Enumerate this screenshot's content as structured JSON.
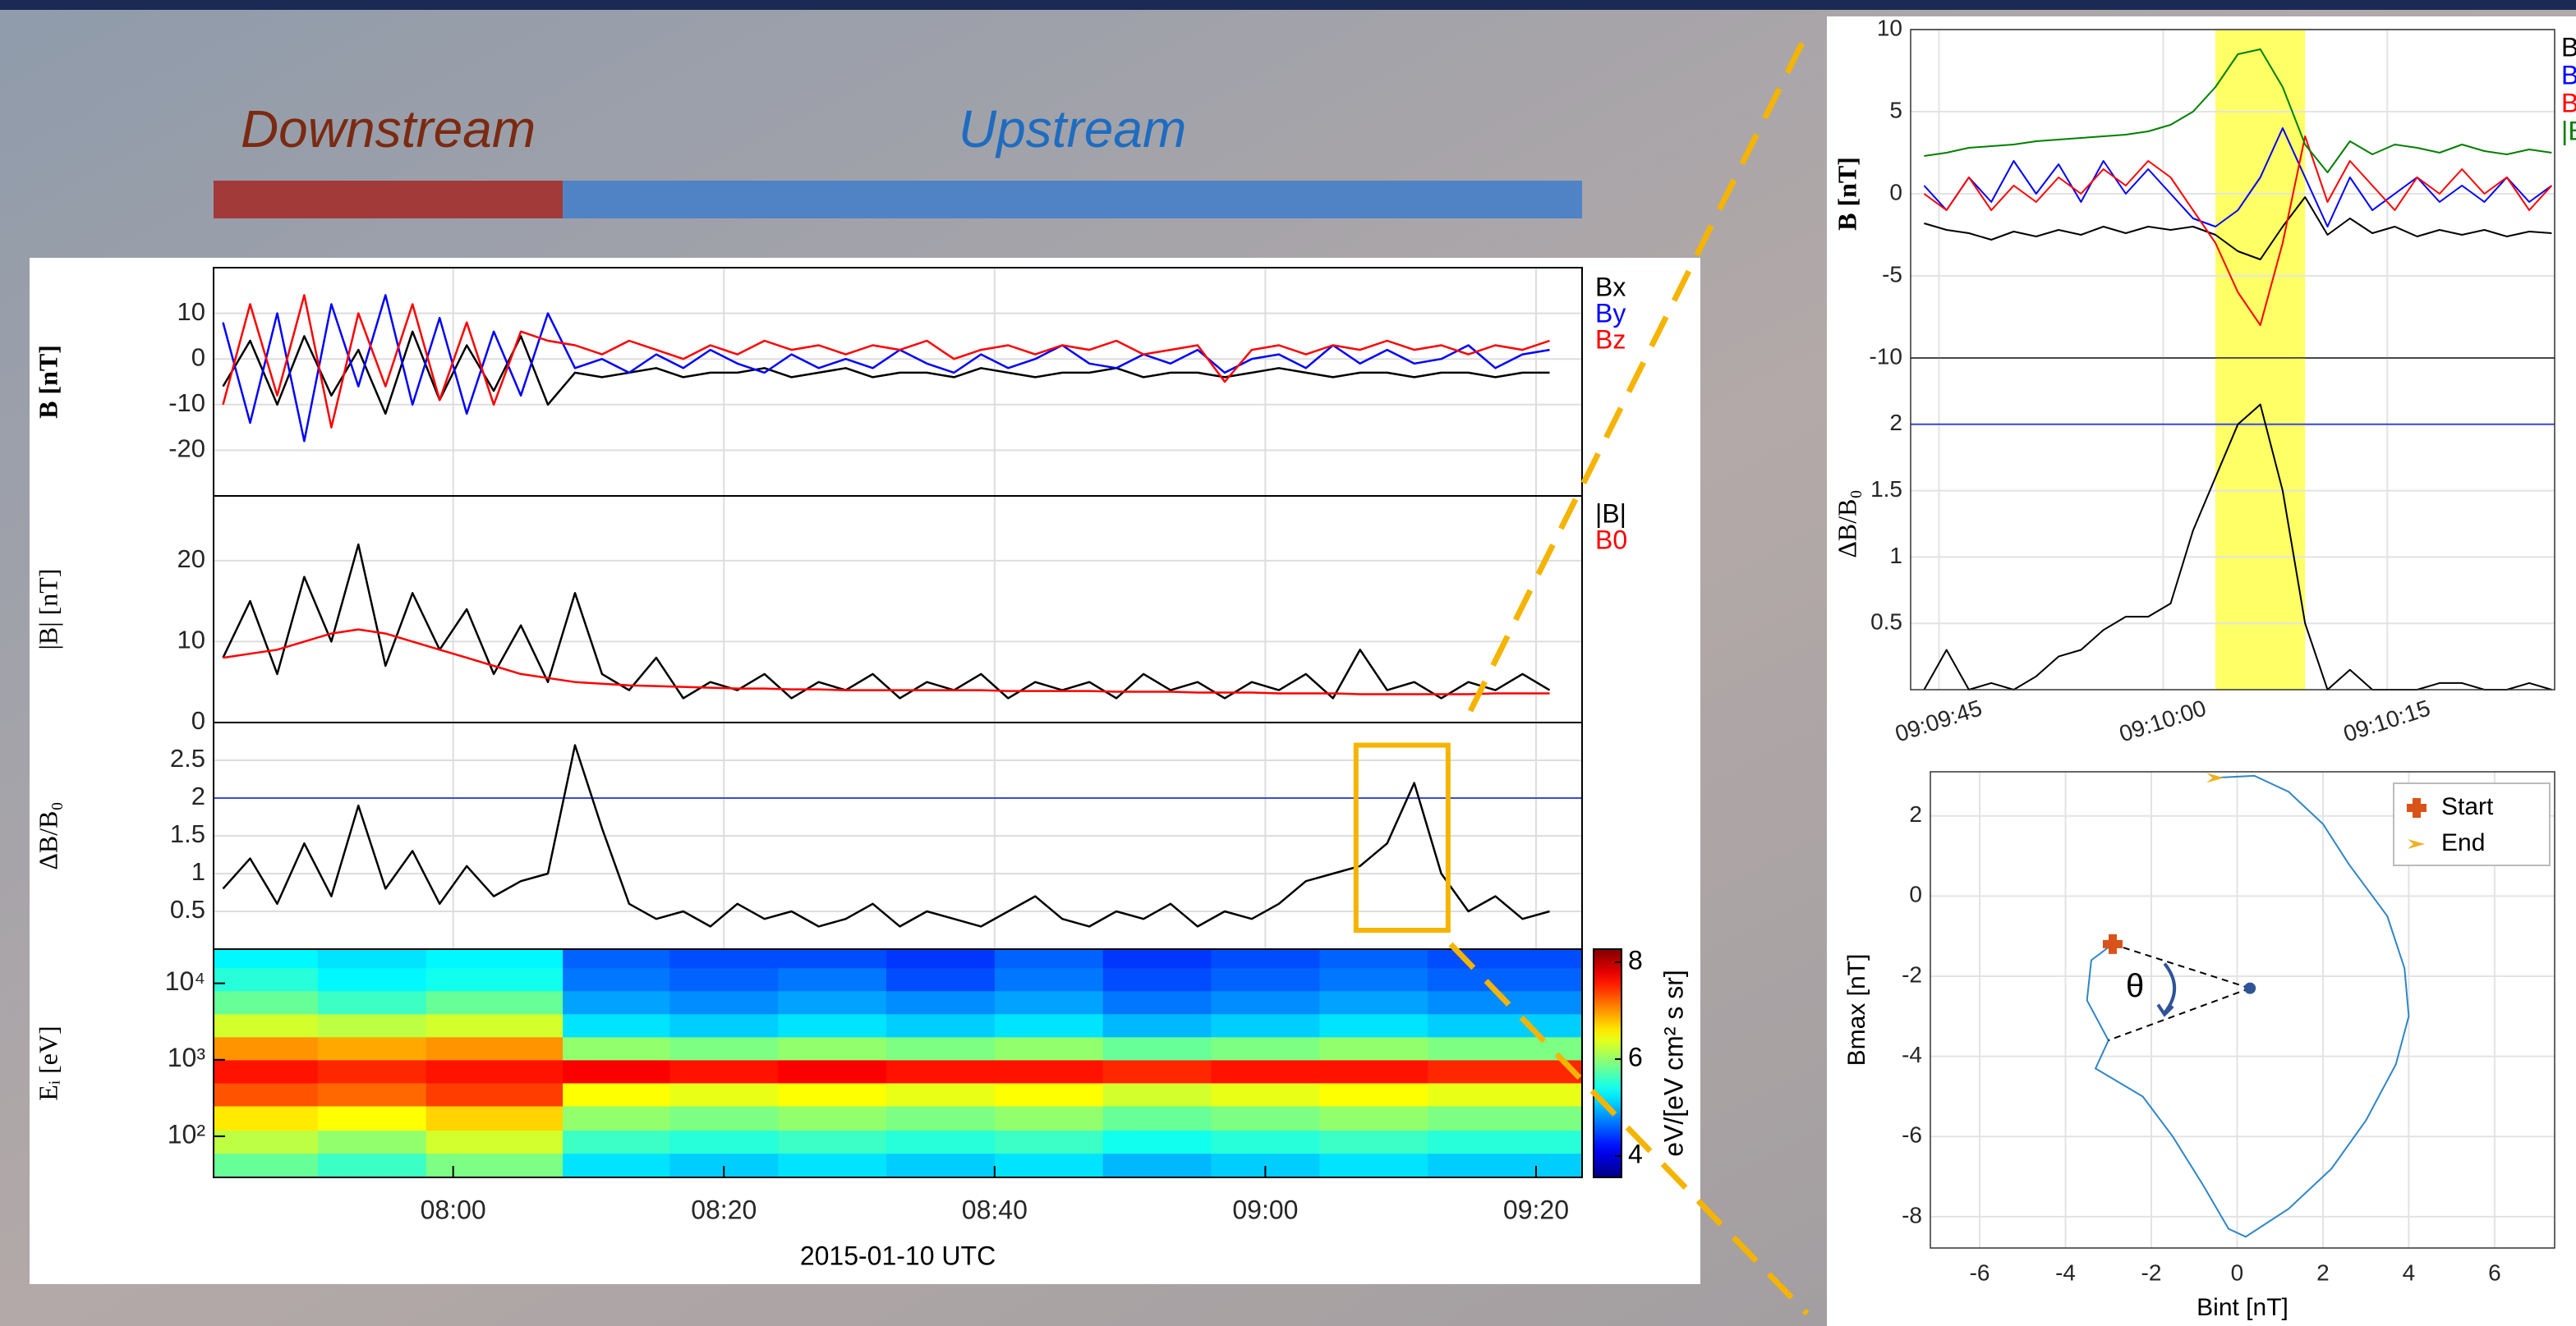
{
  "chart_data": [
    {
      "type": "line",
      "ylabel": "B [nT]",
      "xlim": [
        462.3,
        563.4
      ],
      "ylim": [
        -30,
        20
      ],
      "yticks": [
        -20,
        -10,
        0,
        10
      ],
      "grid": true,
      "regions": [
        {
          "label": "Downstream",
          "color": "#a33a3a",
          "label_color": "#7b2a12",
          "x": [
            462.3,
            488.1
          ]
        },
        {
          "label": "Upstream",
          "color": "#4f83c5",
          "label_color": "#1e6cc0",
          "x": [
            488.1,
            563.4
          ]
        }
      ],
      "x": [
        463,
        465,
        467,
        469,
        471,
        473,
        475,
        477,
        479,
        481,
        483,
        485,
        487,
        489,
        491,
        493,
        495,
        497,
        499,
        501,
        503,
        505,
        507,
        509,
        511,
        513,
        515,
        517,
        519,
        521,
        523,
        525,
        527,
        529,
        531,
        533,
        535,
        537,
        539,
        541,
        543,
        545,
        547,
        549,
        551,
        553,
        555,
        557,
        559,
        561
      ],
      "series": [
        {
          "name": "Bx",
          "color": "#000000",
          "values": [
            -6,
            4,
            -10,
            5,
            -8,
            2,
            -12,
            6,
            -9,
            3,
            -7,
            5,
            -10,
            -3,
            -4,
            -3,
            -2,
            -4,
            -3,
            -3,
            -2,
            -4,
            -3,
            -2,
            -4,
            -3,
            -3,
            -4,
            -2,
            -3,
            -4,
            -3,
            -3,
            -2,
            -4,
            -3,
            -3,
            -4,
            -3,
            -2,
            -3,
            -4,
            -3,
            -3,
            -4,
            -3,
            -3,
            -4,
            -3,
            -3
          ]
        },
        {
          "name": "By",
          "color": "#0000ff",
          "values": [
            8,
            -14,
            10,
            -18,
            12,
            -6,
            14,
            -10,
            9,
            -12,
            6,
            -8,
            10,
            -2,
            0,
            -3,
            1,
            -2,
            2,
            -1,
            -3,
            1,
            -2,
            0,
            -2,
            2,
            -1,
            -3,
            1,
            -2,
            0,
            3,
            -1,
            -2,
            1,
            -1,
            2,
            -3,
            0,
            1,
            -2,
            3,
            -1,
            2,
            -1,
            0,
            3,
            -2,
            1,
            2
          ]
        },
        {
          "name": "Bz",
          "color": "#ff0000",
          "values": [
            -10,
            12,
            -8,
            14,
            -15,
            10,
            -6,
            12,
            -9,
            8,
            -10,
            6,
            4,
            3,
            1,
            4,
            2,
            0,
            3,
            1,
            4,
            2,
            3,
            1,
            3,
            2,
            4,
            0,
            2,
            3,
            1,
            3,
            2,
            4,
            1,
            2,
            3,
            -5,
            2,
            3,
            1,
            3,
            2,
            4,
            2,
            3,
            1,
            3,
            2,
            4
          ]
        }
      ]
    },
    {
      "type": "line",
      "ylabel": "|B| [nT]",
      "xlim": [
        462.3,
        563.4
      ],
      "ylim": [
        0,
        28
      ],
      "yticks": [
        0,
        10,
        20
      ],
      "grid": true,
      "x": [
        463,
        465,
        467,
        469,
        471,
        473,
        475,
        477,
        479,
        481,
        483,
        485,
        487,
        489,
        491,
        493,
        495,
        497,
        499,
        501,
        503,
        505,
        507,
        509,
        511,
        513,
        515,
        517,
        519,
        521,
        523,
        525,
        527,
        529,
        531,
        533,
        535,
        537,
        539,
        541,
        543,
        545,
        547,
        549,
        551,
        553,
        555,
        557,
        559,
        561
      ],
      "series": [
        {
          "name": "|B|",
          "color": "#000000",
          "values": [
            8,
            15,
            6,
            18,
            10,
            22,
            7,
            16,
            9,
            14,
            6,
            12,
            5,
            16,
            6,
            4,
            8,
            3,
            5,
            4,
            6,
            3,
            5,
            4,
            6,
            3,
            5,
            4,
            6,
            3,
            5,
            4,
            5,
            3,
            6,
            4,
            5,
            3,
            5,
            4,
            6,
            3,
            9,
            4,
            5,
            3,
            5,
            4,
            6,
            4
          ]
        },
        {
          "name": "B0",
          "color": "#ff0000",
          "values": [
            8,
            8.5,
            9,
            10,
            11,
            11.5,
            11,
            10,
            9,
            8,
            7,
            6,
            5.5,
            5,
            4.8,
            4.6,
            4.5,
            4.4,
            4.3,
            4.2,
            4.2,
            4.1,
            4.1,
            4,
            4,
            4,
            4,
            4,
            4,
            3.9,
            3.9,
            3.9,
            3.9,
            3.8,
            3.8,
            3.8,
            3.7,
            3.7,
            3.7,
            3.6,
            3.6,
            3.6,
            3.5,
            3.5,
            3.5,
            3.5,
            3.5,
            3.6,
            3.6,
            3.6
          ]
        }
      ]
    },
    {
      "type": "line",
      "ylabel": "ΔB/B₀",
      "xlim": [
        462.3,
        563.4
      ],
      "ylim": [
        0,
        3
      ],
      "yticks": [
        0.5,
        1,
        1.5,
        2,
        2.5
      ],
      "grid": true,
      "reference_line": {
        "value": 2,
        "color": "#3b4bd8"
      },
      "zoom_box": {
        "x": [
          546.7,
          553.5
        ],
        "y": [
          0.25,
          2.7
        ],
        "color": "#f5b400"
      },
      "x": [
        463,
        465,
        467,
        469,
        471,
        473,
        475,
        477,
        479,
        481,
        483,
        485,
        487,
        489,
        491,
        493,
        495,
        497,
        499,
        501,
        503,
        505,
        507,
        509,
        511,
        513,
        515,
        517,
        519,
        521,
        523,
        525,
        527,
        529,
        531,
        533,
        535,
        537,
        539,
        541,
        543,
        545,
        547,
        549,
        551,
        553,
        555,
        557,
        559,
        561
      ],
      "series": [
        {
          "color": "#000000",
          "values": [
            0.8,
            1.2,
            0.6,
            1.4,
            0.7,
            1.9,
            0.8,
            1.3,
            0.6,
            1.1,
            0.7,
            0.9,
            1.0,
            2.7,
            1.6,
            0.6,
            0.4,
            0.5,
            0.3,
            0.6,
            0.4,
            0.5,
            0.3,
            0.4,
            0.6,
            0.3,
            0.5,
            0.4,
            0.3,
            0.5,
            0.7,
            0.4,
            0.3,
            0.5,
            0.4,
            0.6,
            0.3,
            0.5,
            0.4,
            0.6,
            0.9,
            1.0,
            1.1,
            1.4,
            2.2,
            1.0,
            0.5,
            0.7,
            0.4,
            0.5
          ]
        }
      ]
    },
    {
      "type": "heatmap",
      "ylabel": "Eᵢ [eV]",
      "xlabel": "2015-01-10 UTC",
      "log_y": true,
      "xlim": [
        462.3,
        563.4
      ],
      "ylim": [
        29,
        28000
      ],
      "xticks": [
        {
          "value": 480,
          "label": "08:00"
        },
        {
          "value": 500,
          "label": "08:20"
        },
        {
          "value": 520,
          "label": "08:40"
        },
        {
          "value": 540,
          "label": "09:00"
        },
        {
          "value": 560,
          "label": "09:20"
        }
      ],
      "yticks": [
        {
          "value": 100,
          "label": "10²"
        },
        {
          "value": 1000,
          "label": "10³"
        },
        {
          "value": 10000,
          "label": "10⁴"
        }
      ],
      "x_edges": [
        462.3,
        470,
        478,
        488.1,
        496,
        504,
        512,
        520,
        528,
        536,
        544,
        552,
        563.4
      ],
      "y_edges": [
        29,
        60,
        120,
        250,
        500,
        1000,
        2000,
        4000,
        8000,
        16000,
        28000
      ],
      "z": [
        [
          5.8,
          5.6,
          5.9,
          5.2,
          5.1,
          5.2,
          5.1,
          5.2,
          5.0,
          5.1,
          5.2,
          5.1
        ],
        [
          6.2,
          6.0,
          6.3,
          5.6,
          5.5,
          5.6,
          5.5,
          5.6,
          5.4,
          5.5,
          5.6,
          5.5
        ],
        [
          6.6,
          6.5,
          6.7,
          6.0,
          5.9,
          6.0,
          5.9,
          6.0,
          5.8,
          5.9,
          6.0,
          5.9
        ],
        [
          7.3,
          7.2,
          7.4,
          6.5,
          6.4,
          6.5,
          6.4,
          6.5,
          6.3,
          6.4,
          6.5,
          6.4
        ],
        [
          7.6,
          7.5,
          7.6,
          7.7,
          7.6,
          7.7,
          7.6,
          7.6,
          7.5,
          7.6,
          7.6,
          7.5
        ],
        [
          7.0,
          6.9,
          7.0,
          6.0,
          5.9,
          6.0,
          5.9,
          6.0,
          5.8,
          5.9,
          6.0,
          5.9
        ],
        [
          6.3,
          6.2,
          6.3,
          5.2,
          5.1,
          5.2,
          5.1,
          5.2,
          5.0,
          5.1,
          5.2,
          5.1
        ],
        [
          5.8,
          5.6,
          5.8,
          4.9,
          4.8,
          4.9,
          4.8,
          4.9,
          4.7,
          4.8,
          4.9,
          4.8
        ],
        [
          5.5,
          5.3,
          5.4,
          4.7,
          4.6,
          4.7,
          4.5,
          4.7,
          4.5,
          4.6,
          4.7,
          4.6
        ],
        [
          5.3,
          5.2,
          5.3,
          4.6,
          4.5,
          4.5,
          4.4,
          4.6,
          4.4,
          4.5,
          4.6,
          4.5
        ]
      ],
      "colorbar": {
        "label": "eV/[eV cm² s sr]",
        "lim": [
          3.56,
          8.27
        ],
        "ticks": [
          4,
          6,
          8
        ]
      }
    },
    {
      "type": "line",
      "ylabel": "B [nT]",
      "xlim": [
        43.1,
        86.2
      ],
      "ylim": [
        -10,
        10
      ],
      "yticks": [
        -10,
        -5,
        0,
        5,
        10
      ],
      "grid": true,
      "highlight": [
        63.5,
        69.5
      ],
      "highlight_color": "#ffff66",
      "x": [
        44,
        45.5,
        47,
        48.5,
        50,
        51.5,
        53,
        54.5,
        56,
        57.5,
        59,
        60.5,
        62,
        63.5,
        65,
        66.5,
        68,
        69.5,
        71,
        72.5,
        74,
        75.5,
        77,
        78.5,
        80,
        81.5,
        83,
        84.5,
        86
      ],
      "series": [
        {
          "name": "Bx",
          "color": "#000000",
          "values": [
            -1.8,
            -2.2,
            -2.4,
            -2.8,
            -2.3,
            -2.6,
            -2.2,
            -2.5,
            -2,
            -2.4,
            -2,
            -2.2,
            -2,
            -2.5,
            -3.5,
            -4,
            -2,
            -0.2,
            -2.5,
            -1.5,
            -2.4,
            -2,
            -2.6,
            -2.2,
            -2.5,
            -2.2,
            -2.6,
            -2.3,
            -2.4
          ]
        },
        {
          "name": "By",
          "color": "#0000ff",
          "values": [
            0.5,
            -1,
            1,
            -0.5,
            2,
            0,
            1.8,
            -0.5,
            2,
            0,
            1.5,
            0,
            -1.5,
            -2,
            -1,
            1,
            4,
            1,
            -2,
            1,
            -1,
            0,
            1,
            -0.5,
            0.5,
            -0.5,
            1,
            -0.5,
            0.5
          ]
        },
        {
          "name": "Bz",
          "color": "#ff0000",
          "values": [
            0,
            -1,
            1,
            -1,
            0.5,
            -0.5,
            1,
            0,
            1.5,
            0.5,
            2,
            1,
            -1,
            -3,
            -6,
            -8,
            -3,
            3.5,
            -0.5,
            2,
            0.5,
            -1,
            1,
            0,
            1.5,
            0,
            1,
            -1,
            0.5
          ]
        },
        {
          "name": "|B|",
          "color": "#008000",
          "values": [
            2.3,
            2.5,
            2.8,
            2.9,
            3,
            3.2,
            3.3,
            3.4,
            3.5,
            3.6,
            3.8,
            4.2,
            5,
            6.5,
            8.5,
            8.8,
            6.5,
            3,
            1.3,
            3.2,
            2.4,
            3,
            2.8,
            2.5,
            3,
            2.6,
            2.4,
            2.7,
            2.5
          ]
        }
      ]
    },
    {
      "type": "line",
      "ylabel": "ΔB/B₀",
      "xlim": [
        43.1,
        86.2
      ],
      "ylim": [
        0,
        2.5
      ],
      "yticks": [
        0.5,
        1,
        1.5,
        2
      ],
      "grid": true,
      "highlight": [
        63.5,
        69.5
      ],
      "highlight_color": "#ffff66",
      "reference_line": {
        "value": 2,
        "color": "#3b4bd8"
      },
      "xticks": [
        {
          "value": 45,
          "label": "09:09:45"
        },
        {
          "value": 60,
          "label": "09:10:00"
        },
        {
          "value": 75,
          "label": "09:10:15"
        }
      ],
      "x": [
        44,
        45.5,
        47,
        48.5,
        50,
        51.5,
        53,
        54.5,
        56,
        57.5,
        59,
        60.5,
        62,
        63.5,
        65,
        66.5,
        68,
        69.5,
        71,
        72.5,
        74,
        75.5,
        77,
        78.5,
        80,
        81.5,
        83,
        84.5,
        86
      ],
      "series": [
        {
          "color": "#000000",
          "values": [
            0,
            0.3,
            0,
            0.05,
            0,
            0.1,
            0.25,
            0.3,
            0.45,
            0.55,
            0.55,
            0.65,
            1.2,
            1.6,
            2.0,
            2.15,
            1.5,
            0.5,
            0,
            0.15,
            0,
            0,
            0,
            0.05,
            0.05,
            0,
            0,
            0.05,
            0
          ]
        }
      ]
    },
    {
      "type": "xy",
      "xlabel": "Bint [nT]",
      "ylabel": "Bmax [nT]",
      "xlim": [
        -7.15,
        7.4
      ],
      "ylim": [
        -8.78,
        3.1
      ],
      "xticks": [
        -6,
        -4,
        -2,
        0,
        2,
        4,
        6
      ],
      "yticks": [
        -8,
        -6,
        -4,
        -2,
        0,
        2
      ],
      "grid": true,
      "trace": {
        "color": "#2e86c8",
        "x": [
          -2.9,
          -3.4,
          -3.5,
          -3.0,
          -3.3,
          -2.2,
          -1.5,
          -0.8,
          -0.2,
          0.2,
          1.2,
          2.2,
          3.0,
          3.7,
          4.0,
          3.9,
          3.5,
          2.6,
          2.0,
          1.2,
          0.4,
          -0.5
        ],
        "values": [
          -1.2,
          -1.6,
          -2.6,
          -3.6,
          -4.3,
          -5,
          -6,
          -7.2,
          -8.3,
          -8.5,
          -7.8,
          -6.8,
          -5.6,
          -4.2,
          -3,
          -1.8,
          -0.5,
          0.8,
          1.8,
          2.6,
          3.0,
          2.95
        ]
      },
      "series": [
        {
          "name": "Start",
          "color": "#d95319",
          "x": [
            -2.9
          ],
          "values": [
            -1.2
          ]
        },
        {
          "name": "End",
          "color": "#edb120",
          "x": [
            -0.5
          ],
          "values": [
            2.95
          ]
        }
      ],
      "apex": {
        "x": 0.3,
        "y": -2.3,
        "color": "#2f5597"
      },
      "annotation": "θ"
    }
  ]
}
